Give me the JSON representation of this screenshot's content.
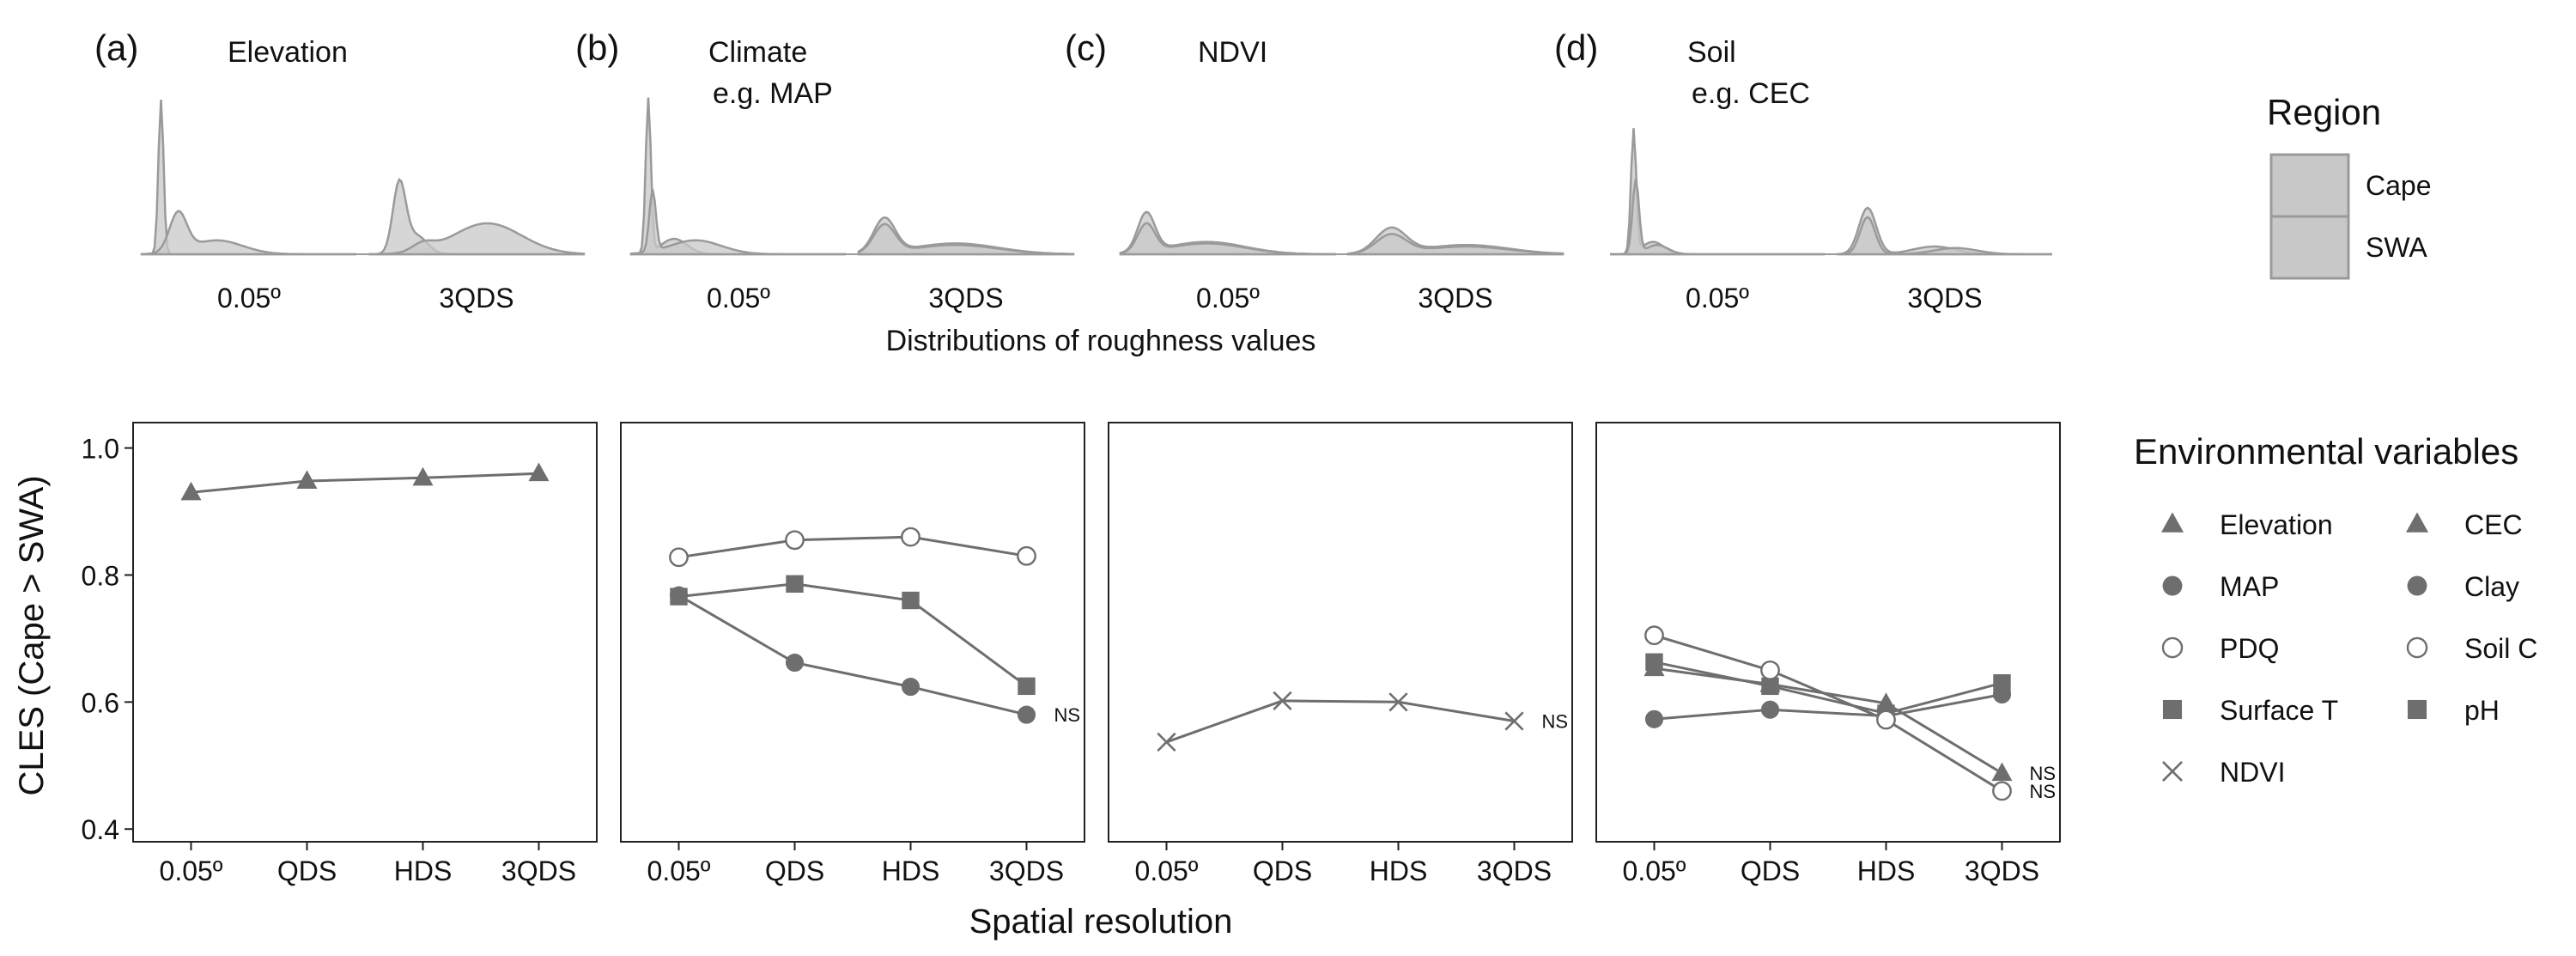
{
  "top": {
    "panels": [
      {
        "letter": "(a)",
        "title": "Elevation",
        "subtitle": ""
      },
      {
        "letter": "(b)",
        "title": "Climate",
        "subtitle": "e.g. MAP"
      },
      {
        "letter": "(c)",
        "title": "NDVI",
        "subtitle": ""
      },
      {
        "letter": "(d)",
        "title": "Soil",
        "subtitle": "e.g. CEC"
      }
    ],
    "resolutions": [
      "0.05º",
      "3QDS"
    ],
    "xlabel": "Distributions of roughness values",
    "legend": {
      "title": "Region",
      "items": [
        "Cape",
        "SWA"
      ]
    }
  },
  "chart_data": {
    "type": "line",
    "x": [
      "0.05º",
      "QDS",
      "HDS",
      "3QDS"
    ],
    "xlabel": "Spatial resolution",
    "ylabel": "CLES (Cape > SWA)",
    "ylim": [
      0.38,
      1.04
    ],
    "yticks": [
      "0.4",
      "0.6",
      "0.8",
      "1.0"
    ],
    "ytick_values": [
      0.4,
      0.6,
      0.8,
      1.0
    ],
    "grid": false,
    "panels": [
      {
        "series": [
          {
            "name": "Elevation",
            "marker": "triangle-filled",
            "values": [
              0.93,
              0.948,
              0.953,
              0.96
            ],
            "ns": ""
          }
        ]
      },
      {
        "series": [
          {
            "name": "PDQ",
            "marker": "circle-open",
            "values": [
              0.828,
              0.855,
              0.86,
              0.83
            ],
            "ns": ""
          },
          {
            "name": "Surface T",
            "marker": "square-filled",
            "values": [
              0.766,
              0.786,
              0.76,
              0.625
            ],
            "ns": ""
          },
          {
            "name": "MAP",
            "marker": "circle-filled",
            "values": [
              0.768,
              0.662,
              0.624,
              0.58
            ],
            "ns": "NS"
          }
        ]
      },
      {
        "series": [
          {
            "name": "NDVI",
            "marker": "cross",
            "values": [
              0.537,
              0.602,
              0.6,
              0.57
            ],
            "ns": "NS"
          }
        ]
      },
      {
        "series": [
          {
            "name": "Clay",
            "marker": "circle-filled",
            "values": [
              0.573,
              0.588,
              0.578,
              0.612
            ],
            "ns": ""
          },
          {
            "name": "pH",
            "marker": "square-filled",
            "values": [
              0.663,
              0.625,
              0.582,
              0.63
            ],
            "ns": ""
          },
          {
            "name": "CEC",
            "marker": "triangle-filled",
            "values": [
              0.653,
              0.628,
              0.598,
              0.488
            ],
            "ns": "NS"
          },
          {
            "name": "Soil C",
            "marker": "circle-open",
            "values": [
              0.705,
              0.65,
              0.572,
              0.46
            ],
            "ns": "NS"
          }
        ]
      }
    ],
    "legend": {
      "title": "Environmental variables",
      "placement": "right",
      "items": [
        {
          "label": "Elevation",
          "marker": "triangle-filled"
        },
        {
          "label": "MAP",
          "marker": "circle-filled"
        },
        {
          "label": "PDQ",
          "marker": "circle-open"
        },
        {
          "label": "Surface T",
          "marker": "square-filled"
        },
        {
          "label": "NDVI",
          "marker": "cross"
        },
        {
          "label": "CEC",
          "marker": "triangle-filled"
        },
        {
          "label": "Clay",
          "marker": "circle-filled"
        },
        {
          "label": "Soil C",
          "marker": "circle-open"
        },
        {
          "label": "pH",
          "marker": "square-filled"
        }
      ]
    }
  },
  "colors": {
    "line": "#6e6e6e",
    "marker": "#6e6e6e",
    "density_fill": "#c8c8c8",
    "density_dark": "#9a9a9a",
    "density_stroke": "#9a9a9a",
    "axis": "#222222"
  }
}
